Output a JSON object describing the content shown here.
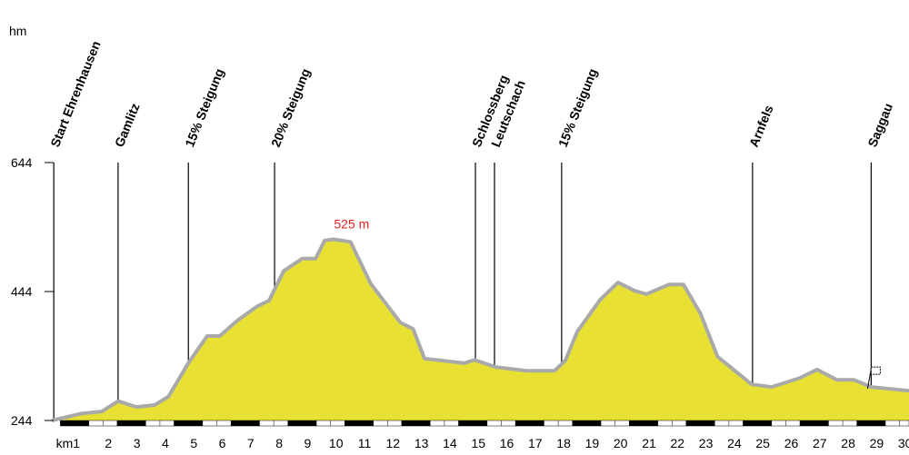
{
  "chart_data": {
    "type": "area",
    "y_label": "hm",
    "x": [
      0.2,
      1.26,
      1.96,
      2.53,
      3.17,
      3.81,
      4.3,
      5.0,
      5.66,
      6.1,
      6.75,
      7.42,
      7.84,
      8.35,
      9.0,
      9.47,
      9.79,
      10.1,
      10.7,
      11.4,
      12.45,
      12.9,
      13.3,
      14.7,
      15.06,
      15.8,
      16.9,
      17.87,
      18.25,
      18.67,
      19.47,
      20.1,
      20.7,
      21.1,
      21.9,
      22.4,
      23.0,
      23.6,
      24.8,
      25.5,
      26.5,
      27.1,
      27.8,
      28.4,
      29.0,
      30.33
    ],
    "values": [
      244,
      255,
      258,
      274,
      265,
      268,
      281,
      333,
      375,
      375,
      400,
      421,
      430,
      476,
      495,
      495,
      523,
      525,
      521,
      457,
      396,
      386,
      340,
      333,
      338,
      327,
      321,
      321,
      337,
      382,
      431,
      458,
      445,
      440,
      455,
      455,
      410,
      343,
      300,
      296,
      310,
      323,
      307,
      307,
      296,
      290
    ],
    "color": "#e8e133",
    "line_color": "#a9a9a9",
    "xlim": [
      0.2,
      30.33
    ],
    "ylim": [
      244,
      644
    ],
    "yticks": [
      244,
      444,
      644
    ],
    "xticks": [
      {
        "value": 1,
        "label": "km1"
      },
      2,
      3,
      4,
      5,
      6,
      7,
      8,
      9,
      10,
      11,
      12,
      13,
      14,
      15,
      16,
      17,
      18,
      19,
      20,
      21,
      22,
      23,
      24,
      25,
      26,
      27,
      28,
      29,
      30
    ],
    "peak": {
      "x": 10.1,
      "value": 525,
      "label": "525 m",
      "color": "#e8201c"
    },
    "markers": [
      {
        "label": "Start Ehrenhausen",
        "x": 0.27
      },
      {
        "label": "Gamlitz",
        "x": 2.53
      },
      {
        "label": "15% Steigung",
        "x": 5.0
      },
      {
        "label": "20% Steigung",
        "x": 8.03
      },
      {
        "label": "Schlossberg",
        "x": 15.09
      },
      {
        "label": "Leutschach",
        "x": 15.76
      },
      {
        "label": "15% Steigung",
        "x": 18.12
      },
      {
        "label": "Arnfels",
        "x": 24.83
      },
      {
        "label": "Saggau",
        "x": 29.0
      }
    ]
  }
}
